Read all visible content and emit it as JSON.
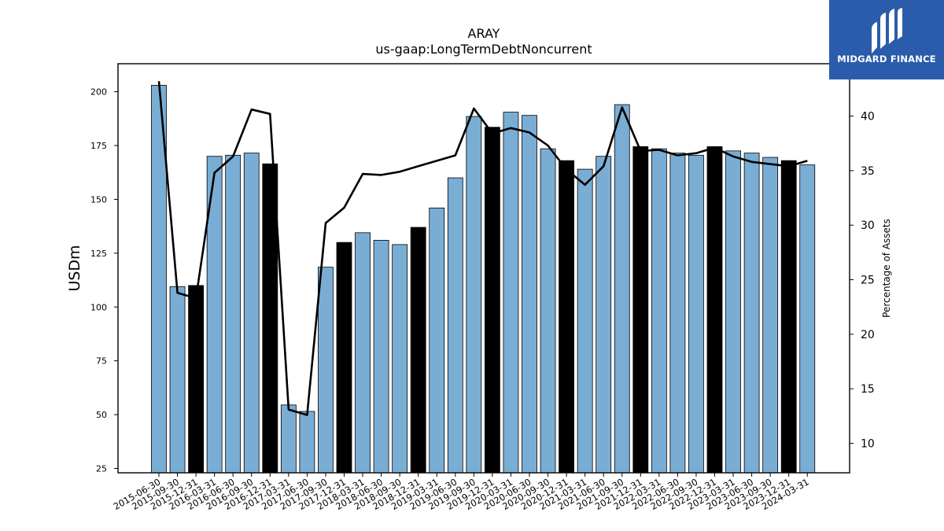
{
  "brand": {
    "name": "MIDGARD FINANCE",
    "bg": "#2b5cab",
    "icon": "midgard-logo-icon"
  },
  "chart_data": {
    "type": "bar+line",
    "title": "ARAY",
    "subtitle": "us-gaap:LongTermDebtNoncurrent",
    "ylabel": "USDm",
    "y2label": "Percentage of Assets",
    "ylim": [
      23,
      213
    ],
    "y2lim": [
      7.3,
      44.8
    ],
    "yticks": [
      25,
      50,
      75,
      100,
      125,
      150,
      175,
      200
    ],
    "y2ticks": [
      10,
      15,
      20,
      25,
      30,
      35,
      40
    ],
    "bar_color": "#7aadd4",
    "highlight_color": "#000000",
    "line_color": "#000000",
    "categories": [
      "2015-06-30",
      "2015-09-30",
      "2015-12-31",
      "2016-03-31",
      "2016-06-30",
      "2016-09-30",
      "2016-12-31",
      "2017-03-31",
      "2017-06-30",
      "2017-09-30",
      "2017-12-31",
      "2018-03-31",
      "2018-06-30",
      "2018-09-30",
      "2018-12-31",
      "2019-03-31",
      "2019-06-30",
      "2019-09-30",
      "2019-12-31",
      "2020-03-31",
      "2020-06-30",
      "2020-09-30",
      "2020-12-31",
      "2021-03-31",
      "2021-06-30",
      "2021-09-30",
      "2021-12-31",
      "2022-03-31",
      "2022-06-30",
      "2022-09-30",
      "2022-12-31",
      "2023-03-31",
      "2023-06-30",
      "2023-09-30",
      "2023-12-31",
      "2024-03-31"
    ],
    "series": [
      {
        "kind": "bar",
        "axis": "left",
        "values": [
          203,
          109.5,
          110,
          170,
          170.5,
          171.5,
          166.5,
          54.5,
          51.5,
          118.5,
          130,
          134.5,
          131,
          129,
          137,
          146,
          160,
          188.5,
          183.5,
          190.5,
          189,
          173.5,
          168,
          164,
          170,
          194,
          174.5,
          173.5,
          171.5,
          170.5,
          174.5,
          172.5,
          171.5,
          169.5,
          168,
          166
        ],
        "highlight": [
          false,
          false,
          true,
          false,
          false,
          false,
          true,
          false,
          false,
          false,
          true,
          false,
          false,
          false,
          true,
          false,
          false,
          false,
          true,
          false,
          false,
          false,
          true,
          false,
          false,
          false,
          true,
          false,
          false,
          false,
          true,
          false,
          false,
          false,
          true,
          false
        ]
      },
      {
        "kind": "line",
        "axis": "right",
        "values": [
          43.2,
          23.8,
          23.3,
          34.8,
          36.3,
          40.6,
          40.2,
          13.1,
          12.6,
          30.2,
          31.6,
          34.7,
          34.6,
          34.9,
          35.4,
          35.9,
          36.4,
          40.7,
          38.4,
          38.9,
          38.5,
          37.3,
          35.1,
          33.7,
          35.4,
          40.8,
          36.8,
          36.9,
          36.4,
          36.6,
          37.1,
          36.3,
          35.8,
          35.6,
          35.4,
          35.9
        ]
      }
    ]
  }
}
